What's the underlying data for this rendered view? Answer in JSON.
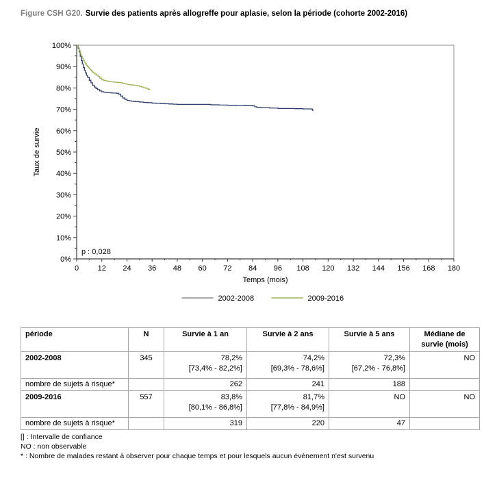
{
  "title": {
    "prefix": "Figure CSH G20.",
    "text": "Survie des patients après allogreffe pour aplasie, selon la période (cohorte 2002-2016)"
  },
  "chart_data": {
    "type": "line",
    "subtype": "kaplan-meier-step",
    "xlabel": "Temps (mois)",
    "ylabel": "Taux de survie",
    "xlim": [
      0,
      180
    ],
    "ylim": [
      0,
      100
    ],
    "x_tick_step": 12,
    "y_tick_step": 10,
    "y_tick_format": "percent",
    "grid": false,
    "legend_position": "bottom",
    "annotation": "p : 0,028",
    "frame_color": "#8c8c8c",
    "axis_color": "#3a3a3a",
    "series": [
      {
        "name": "2002-2008",
        "color": "#2f3e6d",
        "legend_color": "#8c8c8c",
        "points": [
          [
            0,
            100
          ],
          [
            0.7,
            98.6
          ],
          [
            1.2,
            96.8
          ],
          [
            1.7,
            94.8
          ],
          [
            2.2,
            92.8
          ],
          [
            2.7,
            91.2
          ],
          [
            3.2,
            89.6
          ],
          [
            3.7,
            88.2
          ],
          [
            4.2,
            87
          ],
          [
            4.7,
            85.9
          ],
          [
            5.2,
            85
          ],
          [
            6,
            83.6
          ],
          [
            6.8,
            82.4
          ],
          [
            7.6,
            81.3
          ],
          [
            8.4,
            80.4
          ],
          [
            9.2,
            79.7
          ],
          [
            10,
            79.2
          ],
          [
            11,
            78.6
          ],
          [
            12,
            78.2
          ],
          [
            13,
            78
          ],
          [
            14,
            77.9
          ],
          [
            15,
            77.8
          ],
          [
            16,
            77.7
          ],
          [
            17,
            77.6
          ],
          [
            19,
            77.5
          ],
          [
            20,
            77.1
          ],
          [
            21,
            76.2
          ],
          [
            22,
            75.3
          ],
          [
            23,
            74.7
          ],
          [
            24,
            74.2
          ],
          [
            25,
            74
          ],
          [
            26,
            73.8
          ],
          [
            27,
            73.7
          ],
          [
            28,
            73.6
          ],
          [
            30,
            73.4
          ],
          [
            32,
            73.2
          ],
          [
            34,
            73.1
          ],
          [
            36,
            72.9
          ],
          [
            38,
            72.8
          ],
          [
            40,
            72.7
          ],
          [
            42,
            72.6
          ],
          [
            44,
            72.5
          ],
          [
            46,
            72.4
          ],
          [
            48,
            72.3
          ],
          [
            60,
            72.3
          ],
          [
            64,
            72.1
          ],
          [
            68,
            72
          ],
          [
            72,
            71.9
          ],
          [
            76,
            71.8
          ],
          [
            80,
            71.7
          ],
          [
            84,
            71.6
          ],
          [
            85,
            71.2
          ],
          [
            86,
            70.9
          ],
          [
            88,
            70.8
          ],
          [
            92,
            70.6
          ],
          [
            96,
            70.4
          ],
          [
            104,
            70.3
          ],
          [
            108,
            70.2
          ],
          [
            112,
            70.1
          ],
          [
            112.6,
            69.5
          ],
          [
            113,
            69.5
          ]
        ]
      },
      {
        "name": "2009-2016",
        "color": "#9cb457",
        "legend_color": "#9cb457",
        "points": [
          [
            0,
            100
          ],
          [
            0.6,
            99
          ],
          [
            1.1,
            97.6
          ],
          [
            1.6,
            96.2
          ],
          [
            2.1,
            95
          ],
          [
            2.6,
            93.9
          ],
          [
            3.1,
            92.9
          ],
          [
            3.6,
            92.1
          ],
          [
            4.1,
            91.3
          ],
          [
            4.6,
            90.6
          ],
          [
            5.1,
            90
          ],
          [
            5.6,
            89.4
          ],
          [
            6.1,
            88.9
          ],
          [
            6.6,
            88.4
          ],
          [
            7.1,
            87.9
          ],
          [
            7.6,
            87.4
          ],
          [
            8.1,
            87
          ],
          [
            8.8,
            86.5
          ],
          [
            9.5,
            86
          ],
          [
            10.2,
            85.4
          ],
          [
            11,
            84.6
          ],
          [
            12,
            83.8
          ],
          [
            13,
            83.5
          ],
          [
            14,
            83.3
          ],
          [
            15,
            83.1
          ],
          [
            16,
            82.9
          ],
          [
            17,
            82.8
          ],
          [
            18,
            82.7
          ],
          [
            19,
            82.6
          ],
          [
            20,
            82.5
          ],
          [
            21,
            82.4
          ],
          [
            22,
            82.1
          ],
          [
            23,
            81.9
          ],
          [
            24,
            81.7
          ],
          [
            25,
            81.5
          ],
          [
            26,
            81.4
          ],
          [
            27,
            81.3
          ],
          [
            28,
            81.2
          ],
          [
            29,
            81
          ],
          [
            30,
            80.7
          ],
          [
            31,
            80.4
          ],
          [
            32,
            80.1
          ],
          [
            33,
            79.8
          ],
          [
            34,
            79.4
          ],
          [
            34.8,
            79
          ]
        ]
      }
    ]
  },
  "table": {
    "columns": [
      {
        "label": "période"
      },
      {
        "label": "N"
      },
      {
        "label": "Survie à 1 an"
      },
      {
        "label": "Survie à 2 ans"
      },
      {
        "label": "Survie à 5 ans"
      },
      {
        "label": "Médiane de survie (mois)"
      }
    ],
    "rows": [
      {
        "type": "period",
        "cells": [
          [
            "2002-2008"
          ],
          [
            "345"
          ],
          [
            "78,2%",
            "[73,4% - 82,2%]"
          ],
          [
            "74,2%",
            "[69,3% - 78,6%]"
          ],
          [
            "72,3%",
            "[67,2% - 76,8%]"
          ],
          [
            "NO"
          ]
        ]
      },
      {
        "type": "risk",
        "cells": [
          [
            "nombre de sujets à risque*"
          ],
          [
            ""
          ],
          [
            "262"
          ],
          [
            "241"
          ],
          [
            "188"
          ],
          [
            ""
          ]
        ]
      },
      {
        "type": "period",
        "cells": [
          [
            "2009-2016"
          ],
          [
            "557"
          ],
          [
            "83,8%",
            "[80,1% - 86,8%]"
          ],
          [
            "81,7%",
            "[77,8% - 84,9%]"
          ],
          [
            "NO"
          ],
          [
            "NO"
          ]
        ]
      },
      {
        "type": "risk",
        "cells": [
          [
            "nombre de sujets à risque*"
          ],
          [
            ""
          ],
          [
            "319"
          ],
          [
            "220"
          ],
          [
            "47"
          ],
          [
            ""
          ]
        ]
      }
    ]
  },
  "footnotes": [
    "[] : Intervalle de confiance",
    "NO : non observable",
    "* : Nombre de malades restant à observer pour chaque temps et pour lesquels aucun évènement n'est survenu"
  ]
}
